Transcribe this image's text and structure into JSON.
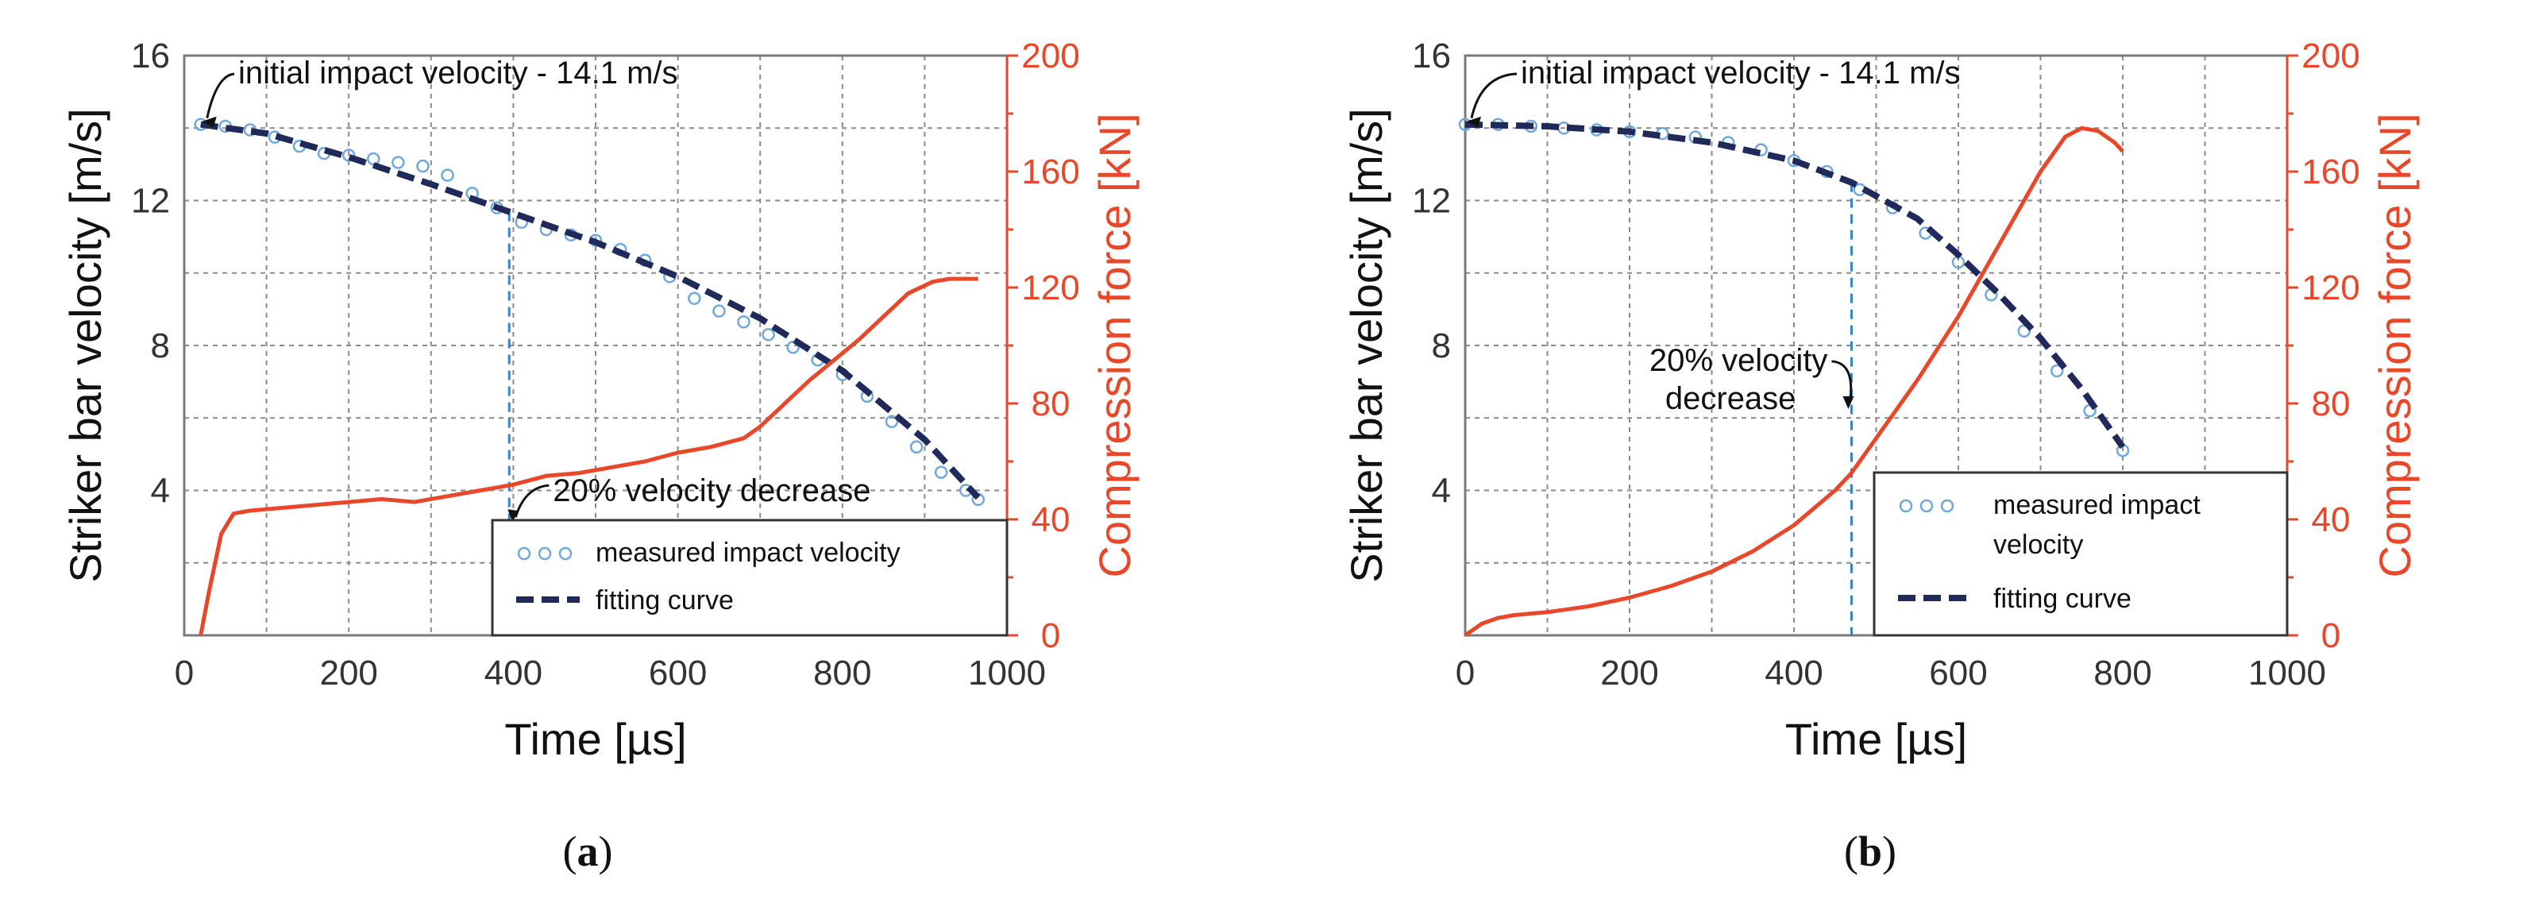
{
  "chart_data": [
    {
      "type": "line",
      "panel": "(a)",
      "panel_letter": "a",
      "xlabel": "Time [µs]",
      "ylabel": "Striker bar velocity [m/s]",
      "y2label": "Compression force [kN]",
      "xlim": [
        0,
        1000
      ],
      "ylim": [
        0,
        16
      ],
      "y2lim": [
        0,
        200
      ],
      "xticks": [
        "0",
        "200",
        "400",
        "600",
        "800",
        "1000"
      ],
      "yticks": [
        "4",
        "8",
        "12",
        "16"
      ],
      "y2ticks": [
        "0",
        "40",
        "80",
        "120",
        "160",
        "200"
      ],
      "grid": true,
      "annotations": {
        "initial": "initial impact velocity - 14.1 m/s",
        "decrease": "20% velocity decrease",
        "decrease_time": 395
      },
      "legend": {
        "measured": "measured impact velocity",
        "fitting": "fitting curve",
        "placement": "bottom-right"
      },
      "series": [
        {
          "name": "measured impact velocity",
          "axis": "left",
          "style": "markers",
          "x": [
            20,
            50,
            80,
            110,
            140,
            170,
            200,
            230,
            260,
            290,
            320,
            350,
            380,
            410,
            440,
            470,
            500,
            530,
            560,
            590,
            620,
            650,
            680,
            710,
            740,
            770,
            800,
            830,
            860,
            890,
            920,
            950,
            965
          ],
          "y": [
            14.1,
            14.05,
            13.95,
            13.75,
            13.5,
            13.3,
            13.25,
            13.15,
            13.05,
            12.95,
            12.7,
            12.2,
            11.8,
            11.4,
            11.2,
            11.05,
            10.9,
            10.65,
            10.35,
            9.9,
            9.3,
            8.95,
            8.65,
            8.3,
            7.95,
            7.6,
            7.2,
            6.6,
            5.9,
            5.2,
            4.5,
            4.0,
            3.75
          ]
        },
        {
          "name": "fitting curve",
          "axis": "left",
          "style": "dashed",
          "x": [
            20,
            100,
            200,
            300,
            400,
            500,
            600,
            700,
            800,
            900,
            965
          ],
          "y": [
            14.1,
            13.85,
            13.2,
            12.45,
            11.65,
            10.85,
            9.9,
            8.75,
            7.3,
            5.4,
            3.8
          ]
        },
        {
          "name": "compression force",
          "axis": "right",
          "style": "solid",
          "x": [
            20,
            30,
            45,
            60,
            80,
            120,
            160,
            200,
            240,
            280,
            320,
            360,
            400,
            440,
            480,
            520,
            560,
            600,
            640,
            680,
            700,
            730,
            760,
            790,
            820,
            850,
            880,
            910,
            930,
            950,
            965
          ],
          "y": [
            0,
            15,
            35,
            42,
            43,
            44,
            45,
            46,
            47,
            46,
            48,
            50,
            52,
            55,
            56,
            58,
            60,
            63,
            65,
            68,
            72,
            80,
            88,
            95,
            102,
            110,
            118,
            122,
            123,
            123,
            123
          ]
        }
      ]
    },
    {
      "type": "line",
      "panel": "(b)",
      "panel_letter": "b",
      "xlabel": "Time [µs]",
      "ylabel": "Striker bar velocity [m/s]",
      "y2label": "Compression force [kN]",
      "xlim": [
        0,
        1000
      ],
      "ylim": [
        0,
        16
      ],
      "y2lim": [
        0,
        200
      ],
      "xticks": [
        "0",
        "200",
        "400",
        "600",
        "800",
        "1000"
      ],
      "yticks": [
        "4",
        "8",
        "12",
        "16"
      ],
      "y2ticks": [
        "0",
        "40",
        "80",
        "120",
        "160",
        "200"
      ],
      "grid": true,
      "annotations": {
        "initial": "initial impact velocity - 14.1 m/s",
        "decrease_line1": "20% velocity",
        "decrease_line2": "decrease",
        "decrease_time": 470
      },
      "legend": {
        "measured_line1": "measured impact",
        "measured_line2": "velocity",
        "fitting": "fitting curve",
        "placement": "bottom-right"
      },
      "series": [
        {
          "name": "measured impact velocity",
          "axis": "left",
          "style": "markers",
          "x": [
            0,
            40,
            80,
            120,
            160,
            200,
            240,
            280,
            320,
            360,
            400,
            440,
            480,
            520,
            560,
            600,
            640,
            680,
            720,
            760,
            800
          ],
          "y": [
            14.1,
            14.1,
            14.05,
            14.0,
            13.95,
            13.9,
            13.85,
            13.75,
            13.6,
            13.4,
            13.1,
            12.8,
            12.3,
            11.8,
            11.1,
            10.3,
            9.4,
            8.4,
            7.3,
            6.2,
            5.1
          ]
        },
        {
          "name": "fitting curve",
          "axis": "left",
          "style": "dashed",
          "x": [
            0,
            100,
            200,
            300,
            400,
            470,
            550,
            600,
            650,
            700,
            750,
            800
          ],
          "y": [
            14.1,
            14.05,
            13.9,
            13.6,
            13.1,
            12.5,
            11.5,
            10.5,
            9.4,
            8.2,
            6.8,
            5.2
          ]
        },
        {
          "name": "compression force",
          "axis": "right",
          "style": "solid",
          "x": [
            0,
            20,
            40,
            60,
            100,
            150,
            200,
            250,
            300,
            350,
            400,
            450,
            470,
            500,
            550,
            600,
            650,
            700,
            730,
            750,
            770,
            790,
            800
          ],
          "y": [
            0,
            4,
            6,
            7,
            8,
            10,
            13,
            17,
            22,
            29,
            38,
            50,
            56,
            68,
            88,
            110,
            135,
            160,
            172,
            175,
            174,
            170,
            167
          ]
        }
      ]
    }
  ]
}
